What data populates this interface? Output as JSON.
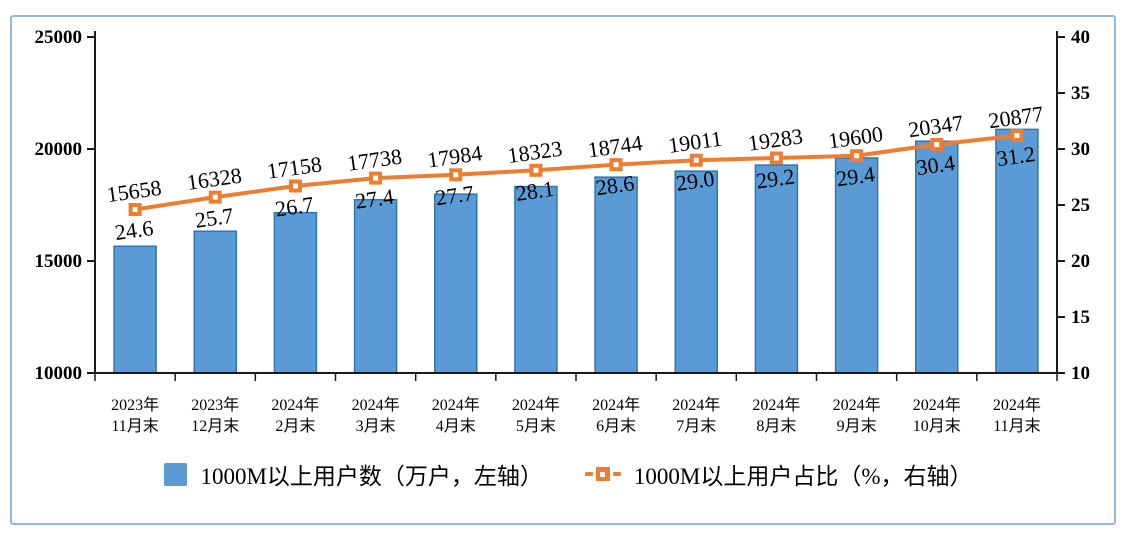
{
  "chart_data": {
    "type": "combo-bar-line",
    "title": "",
    "xlabel": "",
    "ylabel_left": "",
    "ylabel_right": "",
    "grid": false,
    "legend_position": "bottom",
    "axis_color": "#1a1a1a",
    "frame_border_color": "#8FBADF",
    "categories": [
      [
        "2023年",
        "11月末"
      ],
      [
        "2023年",
        "12月末"
      ],
      [
        "2024年",
        "2月末"
      ],
      [
        "2024年",
        "3月末"
      ],
      [
        "2024年",
        "4月末"
      ],
      [
        "2024年",
        "5月末"
      ],
      [
        "2024年",
        "6月末"
      ],
      [
        "2024年",
        "7月末"
      ],
      [
        "2024年",
        "8月末"
      ],
      [
        "2024年",
        "9月末"
      ],
      [
        "2024年",
        "10月末"
      ],
      [
        "2024年",
        "11月末"
      ]
    ],
    "series": [
      {
        "name": "1000M以上用户数（万户，左轴）",
        "type": "bar",
        "axis": "left",
        "color": "#5B9BD5",
        "border_color": "#2E75B6",
        "values": [
          15658,
          16328,
          17158,
          17738,
          17984,
          18323,
          18744,
          19011,
          19283,
          19600,
          20347,
          20877
        ],
        "labels": [
          "15658",
          "16328",
          "17158",
          "17738",
          "17984",
          "18323",
          "18744",
          "19011",
          "19283",
          "19600",
          "20347",
          "20877"
        ]
      },
      {
        "name": "1000M以上用户占比（%，右轴）",
        "type": "line",
        "axis": "right",
        "color": "#ED7D31",
        "marker": "square",
        "values": [
          24.6,
          25.7,
          26.7,
          27.4,
          27.7,
          28.1,
          28.6,
          29.0,
          29.2,
          29.4,
          30.4,
          31.2
        ],
        "labels": [
          "24.6",
          "25.7",
          "26.7",
          "27.4",
          "27.7",
          "28.1",
          "28.6",
          "29.0",
          "29.2",
          "29.4",
          "30.4",
          "31.2"
        ]
      }
    ],
    "left_axis": {
      "min": 10000,
      "max": 25000,
      "step": 5000,
      "ticks": [
        "10000",
        "15000",
        "20000",
        "25000"
      ]
    },
    "right_axis": {
      "min": 10,
      "max": 40,
      "step": 5,
      "ticks": [
        "10",
        "15",
        "20",
        "25",
        "30",
        "35",
        "40"
      ]
    }
  }
}
